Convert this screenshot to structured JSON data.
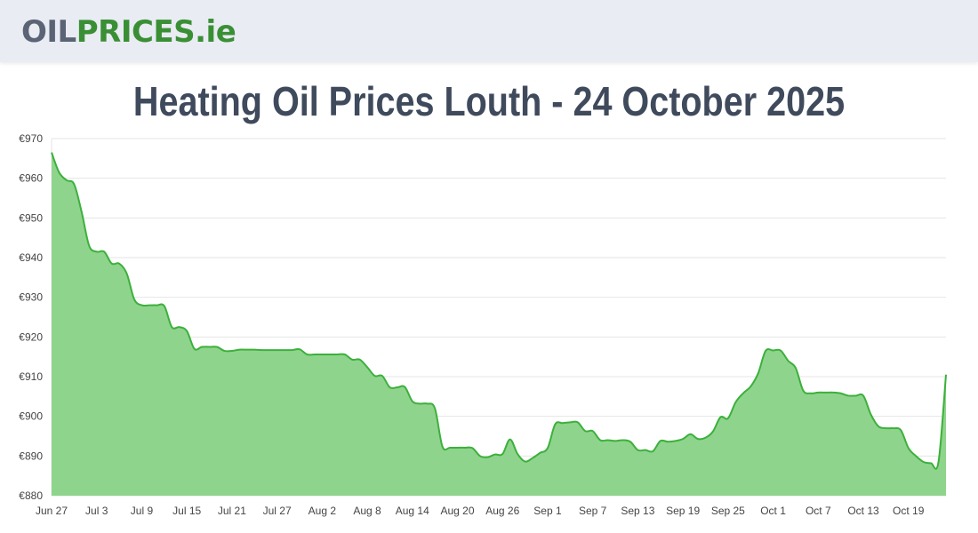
{
  "header": {
    "logo_part1": "OIL",
    "logo_part2": "PRICES.ie"
  },
  "title": "Heating Oil Prices Louth - 24 October 2025",
  "colors": {
    "line": "#3cb03c",
    "fill": "#8fd48c",
    "grid": "#e6e6e6",
    "header_bg": "#e9ecf3",
    "logo_grey": "#5a6475",
    "logo_green": "#3a8f35"
  },
  "chart_data": {
    "type": "area",
    "title": "Heating Oil Prices Louth - 24 October 2025",
    "xlabel": "",
    "ylabel": "",
    "ylim": [
      880,
      970
    ],
    "grid": true,
    "y_ticks": [
      "€970",
      "€960",
      "€950",
      "€940",
      "€930",
      "€920",
      "€910",
      "€900",
      "€890",
      "€880"
    ],
    "x_ticks": [
      "Jun 27",
      "Jul 3",
      "Jul 9",
      "Jul 15",
      "Jul 21",
      "Jul 27",
      "Aug 2",
      "Aug 8",
      "Aug 14",
      "Aug 20",
      "Aug 26",
      "Sep 1",
      "Sep 7",
      "Sep 13",
      "Sep 19",
      "Sep 25",
      "Oct 1",
      "Oct 7",
      "Oct 13",
      "Oct 19"
    ],
    "x": [
      "Jun 27",
      "Jun 28",
      "Jun 29",
      "Jun 30",
      "Jul 1",
      "Jul 2",
      "Jul 3",
      "Jul 4",
      "Jul 5",
      "Jul 6",
      "Jul 7",
      "Jul 8",
      "Jul 9",
      "Jul 10",
      "Jul 11",
      "Jul 12",
      "Jul 13",
      "Jul 14",
      "Jul 15",
      "Jul 16",
      "Jul 17",
      "Jul 18",
      "Jul 19",
      "Jul 20",
      "Jul 21",
      "Jul 22",
      "Jul 23",
      "Jul 24",
      "Jul 25",
      "Jul 26",
      "Jul 27",
      "Jul 28",
      "Jul 29",
      "Jul 30",
      "Jul 31",
      "Aug 1",
      "Aug 2",
      "Aug 3",
      "Aug 4",
      "Aug 5",
      "Aug 6",
      "Aug 7",
      "Aug 8",
      "Aug 9",
      "Aug 10",
      "Aug 11",
      "Aug 12",
      "Aug 13",
      "Aug 14",
      "Aug 15",
      "Aug 16",
      "Aug 17",
      "Aug 18",
      "Aug 19",
      "Aug 20",
      "Aug 21",
      "Aug 22",
      "Aug 23",
      "Aug 24",
      "Aug 25",
      "Aug 26",
      "Aug 27",
      "Aug 28",
      "Aug 29",
      "Aug 30",
      "Aug 31",
      "Sep 1",
      "Sep 2",
      "Sep 3",
      "Sep 4",
      "Sep 5",
      "Sep 6",
      "Sep 7",
      "Sep 8",
      "Sep 9",
      "Sep 10",
      "Sep 11",
      "Sep 12",
      "Sep 13",
      "Sep 14",
      "Sep 15",
      "Sep 16",
      "Sep 17",
      "Sep 18",
      "Sep 19",
      "Sep 20",
      "Sep 21",
      "Sep 22",
      "Sep 23",
      "Sep 24",
      "Sep 25",
      "Sep 26",
      "Sep 27",
      "Sep 28",
      "Sep 29",
      "Sep 30",
      "Oct 1",
      "Oct 2",
      "Oct 3",
      "Oct 4",
      "Oct 5",
      "Oct 6",
      "Oct 7",
      "Oct 8",
      "Oct 9",
      "Oct 10",
      "Oct 11",
      "Oct 12",
      "Oct 13",
      "Oct 14",
      "Oct 15",
      "Oct 16",
      "Oct 17",
      "Oct 18",
      "Oct 19",
      "Oct 20",
      "Oct 21",
      "Oct 22",
      "Oct 23",
      "Oct 24"
    ],
    "series": [
      {
        "values": [
          966.5,
          961.5,
          959.5,
          958.5,
          951.5,
          943,
          941.5,
          941.5,
          938.5,
          938.5,
          936,
          929.5,
          928,
          928,
          928,
          927.8,
          922.5,
          922.5,
          921.5,
          917,
          917.5,
          917.5,
          917.5,
          916.5,
          916.5,
          916.8,
          916.8,
          916.8,
          916.7,
          916.7,
          916.7,
          916.7,
          916.7,
          916.9,
          915.6,
          915.6,
          915.6,
          915.6,
          915.6,
          915.6,
          914.3,
          914.3,
          912.4,
          910.2,
          910.2,
          907.3,
          907.3,
          907.4,
          903.8,
          903.2,
          903.2,
          902,
          892.4,
          892.1,
          892.1,
          892.1,
          892,
          890,
          889.7,
          890.4,
          890.5,
          894.2,
          890.5,
          888.6,
          889.5,
          890.8,
          892,
          898,
          898.3,
          898.5,
          898.5,
          896.3,
          896.3,
          894,
          894,
          893.8,
          894,
          893.6,
          891.5,
          891.5,
          891.2,
          893.8,
          893.6,
          893.8,
          894.3,
          895.5,
          894.3,
          894.6,
          896.2,
          899.8,
          899.5,
          903.5,
          905.8,
          907.5,
          910.8,
          916.5,
          916.6,
          916.6,
          914,
          912.2,
          906.5,
          905.8,
          906,
          906,
          906,
          905.8,
          905.2,
          905.2,
          905.2,
          900.5,
          897.5,
          897,
          897,
          896.5,
          892,
          890,
          888.5,
          888.2,
          888.5,
          910.5
        ]
      }
    ]
  }
}
